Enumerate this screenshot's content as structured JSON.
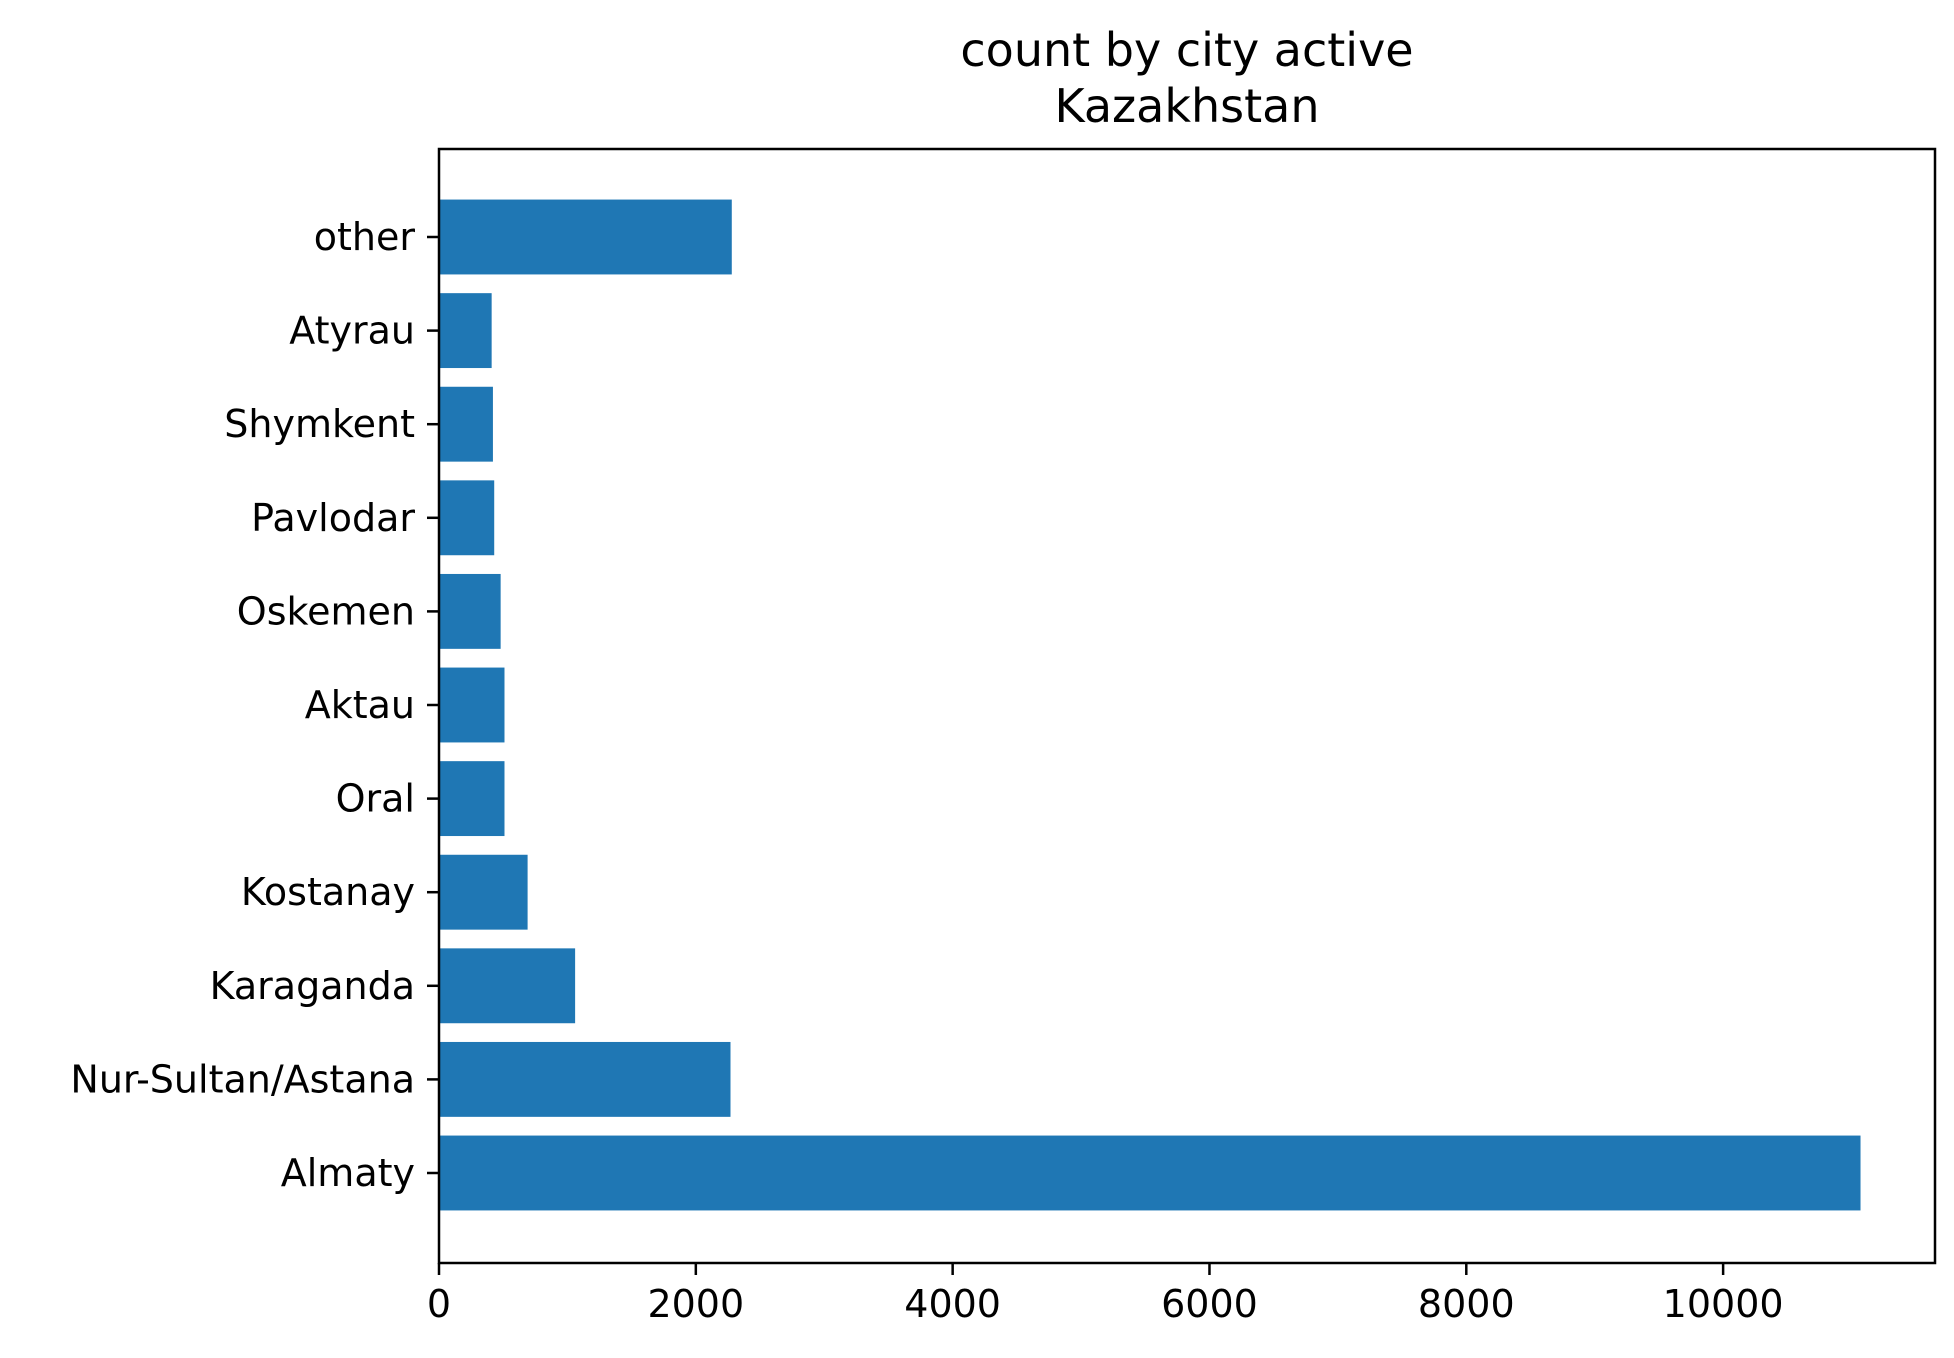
{
  "chart_data": {
    "type": "bar",
    "orientation": "horizontal",
    "title": [
      "count by city active",
      "Kazakhstan"
    ],
    "xlabel": "",
    "ylabel": "",
    "categories": [
      "Almaty",
      "Nur-Sultan/Astana",
      "Karaganda",
      "Kostanay",
      "Oral",
      "Aktau",
      "Oskemen",
      "Pavlodar",
      "Shymkent",
      "Atyrau",
      "other"
    ],
    "values": [
      11070,
      2270,
      1060,
      690,
      510,
      510,
      480,
      430,
      420,
      410,
      2280
    ],
    "xlim": [
      0,
      11650
    ],
    "xticks": [
      0,
      2000,
      4000,
      6000,
      8000,
      10000
    ],
    "xtick_labels": [
      "0",
      "2000",
      "4000",
      "6000",
      "8000",
      "10000"
    ],
    "bar_color": "#1f77b4",
    "grid": false,
    "legend": "none"
  }
}
